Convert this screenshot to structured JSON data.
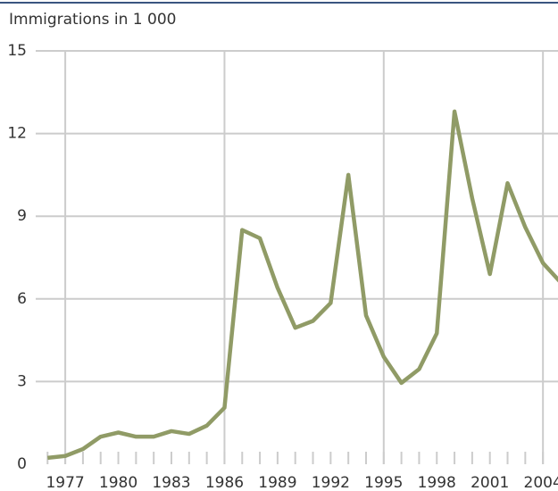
{
  "chart_data": {
    "type": "line",
    "title": "Immigrations in 1 000",
    "x": [
      1976,
      1977,
      1978,
      1979,
      1980,
      1981,
      1982,
      1983,
      1984,
      1985,
      1986,
      1987,
      1988,
      1989,
      1990,
      1991,
      1992,
      1993,
      1994,
      1995,
      1996,
      1997,
      1998,
      1999,
      2000,
      2001,
      2002,
      2003,
      2004,
      2005
    ],
    "series": [
      {
        "name": "Immigrations",
        "color": "#909b66",
        "values": [
          0.23,
          0.3,
          0.55,
          1.0,
          1.15,
          1.0,
          1.0,
          1.2,
          1.1,
          1.4,
          2.05,
          8.5,
          8.2,
          6.4,
          4.95,
          5.2,
          5.85,
          10.5,
          5.4,
          3.9,
          2.95,
          3.45,
          4.75,
          12.8,
          9.65,
          6.9,
          10.2,
          8.6,
          7.3,
          6.6
        ]
      }
    ],
    "xlim": [
      1975.33,
      2004.85
    ],
    "xticks": [
      1977,
      1980,
      1983,
      1986,
      1989,
      1992,
      1995,
      1998,
      2001,
      2004
    ],
    "x_grid": [
      1977,
      1986,
      1995,
      2004
    ],
    "ylim": [
      0,
      15
    ],
    "yticks": [
      0,
      3,
      6,
      9,
      12,
      15
    ],
    "grid": true
  }
}
